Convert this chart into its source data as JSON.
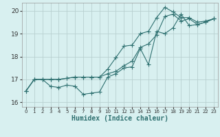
{
  "xlabel": "Humidex (Indice chaleur)",
  "x": [
    0,
    1,
    2,
    3,
    4,
    5,
    6,
    7,
    8,
    9,
    10,
    11,
    12,
    13,
    14,
    15,
    16,
    17,
    18,
    19,
    20,
    21,
    22,
    23
  ],
  "line_min": [
    16.5,
    17.0,
    17.0,
    16.7,
    16.65,
    16.75,
    16.7,
    16.35,
    16.4,
    16.45,
    17.1,
    17.25,
    17.5,
    17.55,
    18.35,
    17.65,
    19.1,
    19.0,
    19.25,
    19.85,
    19.35,
    19.4,
    19.5,
    19.65
  ],
  "line_avg": [
    16.5,
    17.0,
    17.0,
    17.0,
    17.0,
    17.05,
    17.1,
    17.1,
    17.1,
    17.1,
    17.25,
    17.35,
    17.6,
    17.8,
    18.4,
    18.55,
    18.95,
    19.75,
    19.85,
    19.55,
    19.65,
    19.4,
    19.5,
    19.65
  ],
  "line_max": [
    16.5,
    17.0,
    17.0,
    17.0,
    17.0,
    17.05,
    17.1,
    17.1,
    17.1,
    17.1,
    17.45,
    17.95,
    18.45,
    18.5,
    19.0,
    19.1,
    19.7,
    20.15,
    19.95,
    19.7,
    19.7,
    19.5,
    19.55,
    19.65
  ],
  "line_color": "#2e7070",
  "bg_color": "#d8f0f0",
  "grid_color": "#b8d0d0",
  "ylim": [
    15.8,
    20.35
  ],
  "xlim": [
    -0.5,
    23.5
  ],
  "yticks": [
    16,
    17,
    18,
    19,
    20
  ],
  "xticks": [
    0,
    1,
    2,
    3,
    4,
    5,
    6,
    7,
    8,
    9,
    10,
    11,
    12,
    13,
    14,
    15,
    16,
    17,
    18,
    19,
    20,
    21,
    22,
    23
  ]
}
